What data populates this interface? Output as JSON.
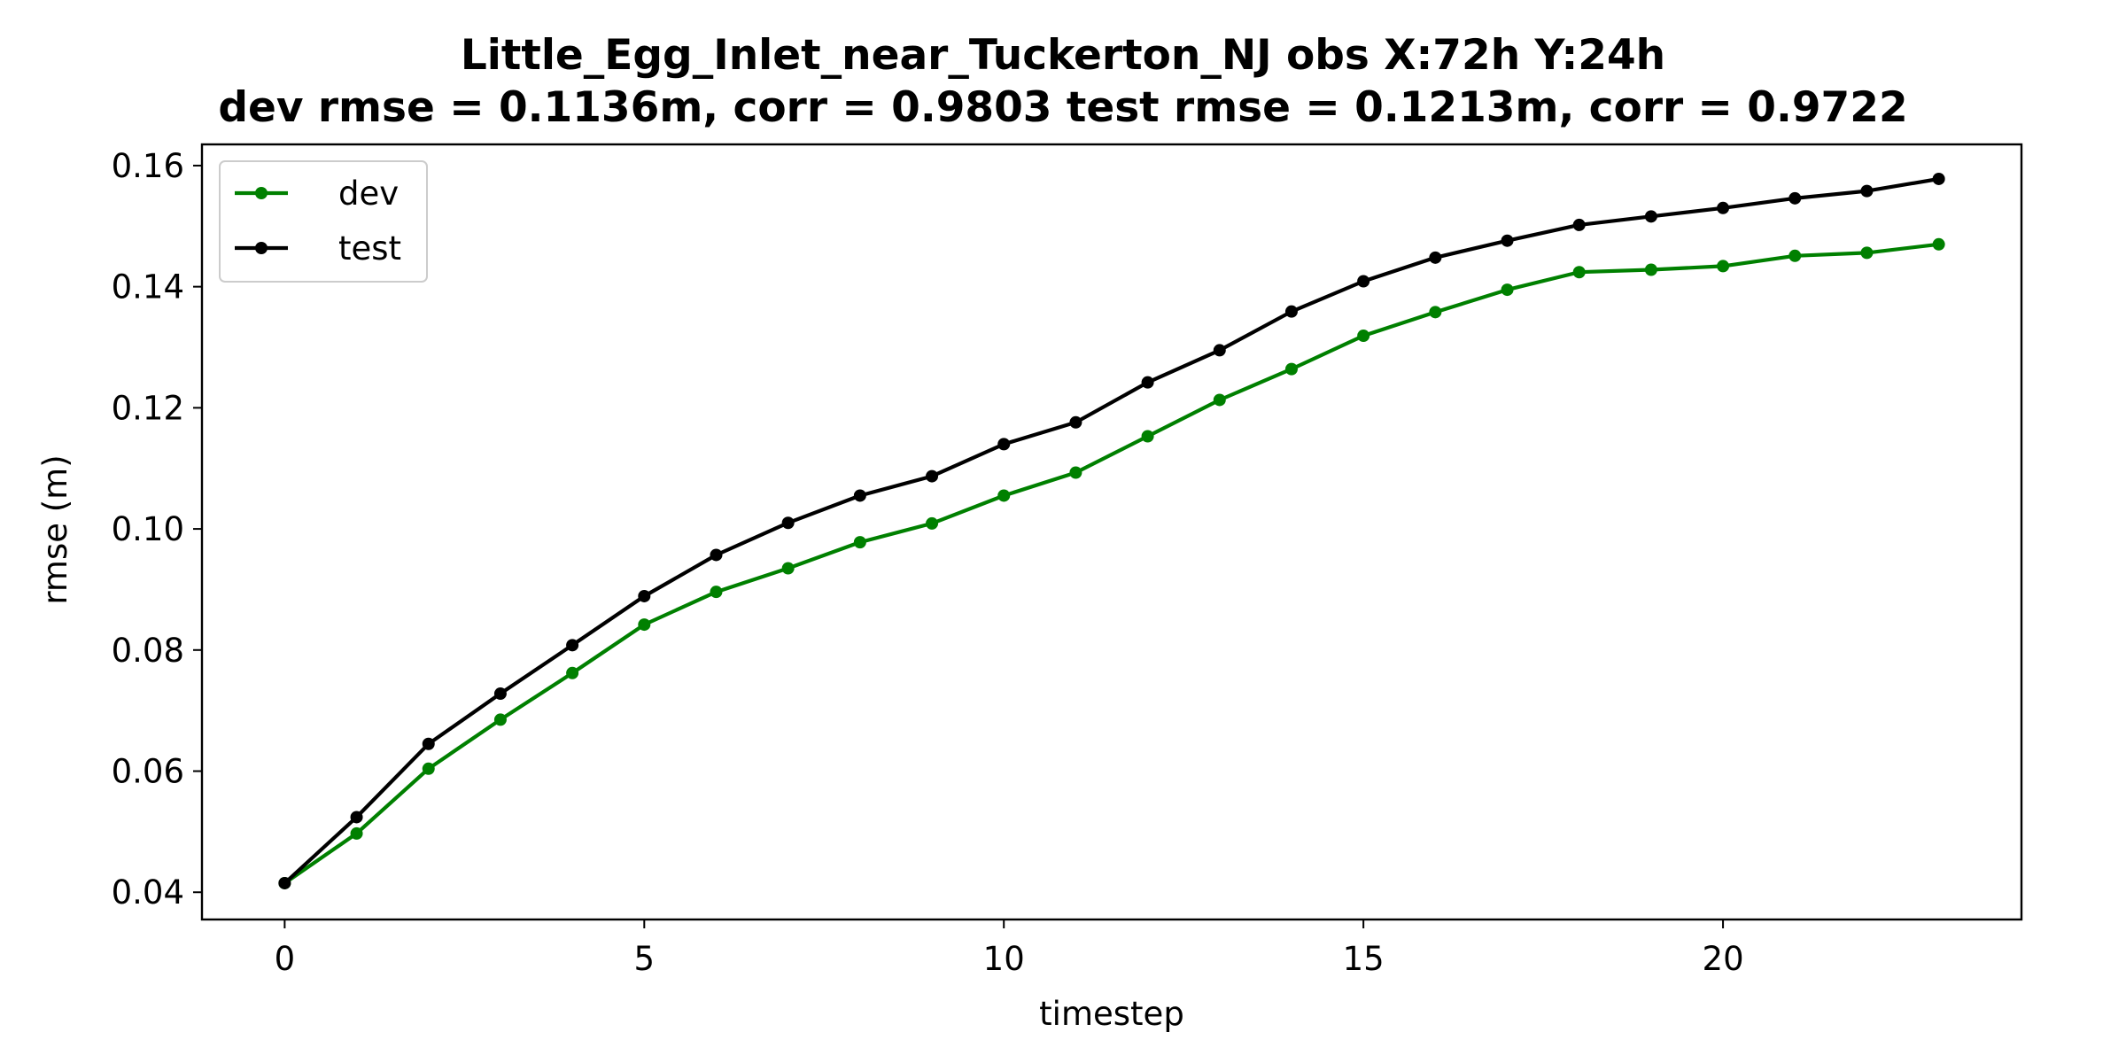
{
  "chart_data": {
    "type": "line",
    "title": "Little_Egg_Inlet_near_Tuckerton_NJ   obs   X:72h   Y:24h",
    "subtitle": "dev rmse = 0.1136m, corr = 0.9803   test rmse = 0.1213m, corr = 0.9722",
    "xlabel": "timestep",
    "ylabel": "rmse (m)",
    "xlim": [
      -1.15,
      24.15
    ],
    "ylim": [
      0.0355,
      0.1635
    ],
    "xticks": [
      0,
      5,
      10,
      15,
      20
    ],
    "yticks": [
      0.04,
      0.06,
      0.08,
      0.1,
      0.12,
      0.14,
      0.16
    ],
    "ytick_labels": [
      "0.04",
      "0.06",
      "0.08",
      "0.10",
      "0.12",
      "0.14",
      "0.16"
    ],
    "grid": false,
    "legend": "top-left",
    "x": [
      0,
      1,
      2,
      3,
      4,
      5,
      6,
      7,
      8,
      9,
      10,
      11,
      12,
      13,
      14,
      15,
      16,
      17,
      18,
      19,
      20,
      21,
      22,
      23
    ],
    "series": [
      {
        "name": "dev",
        "color": "#008000",
        "values": [
          0.0415,
          0.0497,
          0.0604,
          0.0685,
          0.0762,
          0.0842,
          0.0896,
          0.0935,
          0.0978,
          0.1009,
          0.1055,
          0.1093,
          0.1153,
          0.1213,
          0.1264,
          0.1319,
          0.1358,
          0.1395,
          0.1424,
          0.1428,
          0.1434,
          0.1451,
          0.1456,
          0.147
        ]
      },
      {
        "name": "test",
        "color": "#000000",
        "values": [
          0.0415,
          0.0524,
          0.0645,
          0.0728,
          0.0808,
          0.0889,
          0.0957,
          0.101,
          0.1055,
          0.1087,
          0.114,
          0.1176,
          0.1242,
          0.1295,
          0.1359,
          0.1409,
          0.1448,
          0.1476,
          0.1502,
          0.1516,
          0.153,
          0.1546,
          0.1558,
          0.1578
        ]
      }
    ]
  }
}
